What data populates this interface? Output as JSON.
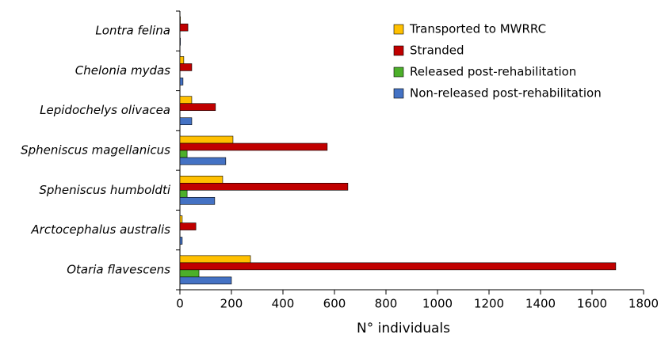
{
  "chart_data": {
    "type": "hbar",
    "xlabel": "N° individuals",
    "categories": [
      "Lontra felina",
      "Chelonia mydas",
      "Lepidochelys olivacea",
      "Spheniscus magellanicus",
      "Spheniscus humboldti",
      "Arctocephalus australis",
      "Otaria flavescens"
    ],
    "series": [
      {
        "name": "Transported to MWRRC",
        "color": "#ffc000",
        "values": [
          2,
          15,
          46,
          206,
          166,
          9,
          274
        ]
      },
      {
        "name": "Stranded",
        "color": "#c00000",
        "values": [
          31,
          46,
          138,
          572,
          652,
          62,
          1692
        ]
      },
      {
        "name": "Released post-rehabilitation",
        "color": "#4caf2a",
        "values": [
          0,
          0,
          0,
          28,
          28,
          0,
          74
        ]
      },
      {
        "name": "Non-released post-rehabilitation",
        "color": "#4472c4",
        "values": [
          2,
          12,
          46,
          178,
          135,
          9,
          200
        ]
      }
    ],
    "xlim": [
      0,
      1800
    ],
    "xticks": [
      0,
      200,
      400,
      600,
      800,
      1000,
      1200,
      1400,
      1600,
      1800
    ],
    "legend": "upper right"
  }
}
